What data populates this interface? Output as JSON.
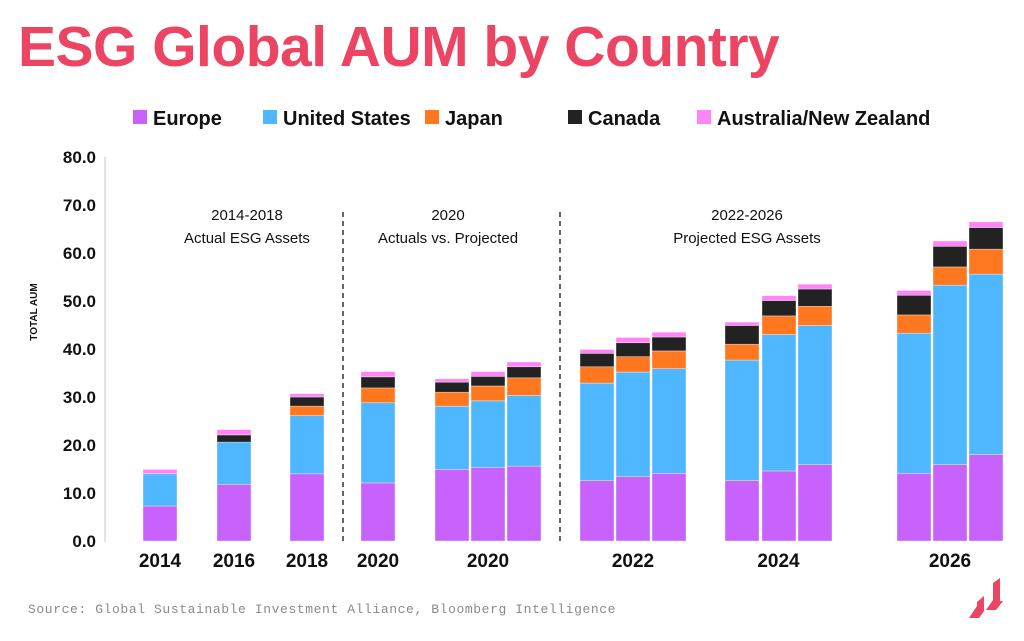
{
  "title": "ESG Global AUM by Country",
  "source": "Source: Global Sustainable Investment Alliance, Bloomberg Intelligence",
  "chart_data": {
    "type": "bar",
    "stacked": true,
    "ylabel": "TOTAL AUM",
    "ylim": [
      0,
      80
    ],
    "yticks": [
      "0.0",
      "10.0",
      "20.0",
      "30.0",
      "40.0",
      "50.0",
      "60.0",
      "70.0",
      "80.0"
    ],
    "grid": false,
    "legend_position": "top",
    "series": [
      {
        "name": "Europe",
        "color": "#c862fc"
      },
      {
        "name": "United States",
        "color": "#4fb7ff"
      },
      {
        "name": "Japan",
        "color": "#ff781f"
      },
      {
        "name": "Canada",
        "color": "#222222"
      },
      {
        "name": "Australia/New Zealand",
        "color": "#ff84f7"
      }
    ],
    "groups": [
      {
        "label": "2014",
        "bars": [
          [
            7.3,
            6.7,
            0,
            0,
            0.9
          ]
        ]
      },
      {
        "label": "2016",
        "bars": [
          [
            11.8,
            8.8,
            0,
            1.5,
            1.1
          ]
        ]
      },
      {
        "label": "2018",
        "bars": [
          [
            14.0,
            12.1,
            2.0,
            1.9,
            0.7
          ]
        ]
      },
      {
        "label": "2020",
        "bars": [
          [
            12.1,
            16.7,
            3.1,
            2.3,
            1.1
          ]
        ]
      },
      {
        "label": "2020",
        "bars": [
          [
            14.9,
            13.2,
            2.9,
            2.1,
            0.7
          ],
          [
            15.3,
            13.9,
            3.1,
            2.0,
            1.0
          ],
          [
            15.6,
            14.7,
            3.7,
            2.3,
            1.0
          ]
        ]
      },
      {
        "label": "2022",
        "bars": [
          [
            12.6,
            20.3,
            3.4,
            2.8,
            0.8
          ],
          [
            13.4,
            21.8,
            3.2,
            2.9,
            1.1
          ],
          [
            14.1,
            21.8,
            3.7,
            2.9,
            1.0
          ]
        ]
      },
      {
        "label": "2024",
        "bars": [
          [
            12.6,
            25.1,
            3.3,
            3.9,
            0.7
          ],
          [
            14.6,
            28.4,
            3.9,
            3.2,
            1.0
          ],
          [
            15.9,
            29.0,
            4.0,
            3.6,
            1.0
          ]
        ]
      },
      {
        "label": "2026",
        "bars": [
          [
            14.1,
            29.2,
            3.8,
            4.1,
            1.0
          ],
          [
            15.9,
            37.4,
            3.8,
            4.3,
            1.1
          ],
          [
            18.0,
            37.6,
            5.2,
            4.5,
            1.2
          ]
        ]
      }
    ],
    "annotations": [
      {
        "line1": "2014-2018",
        "line2": "Actual ESG Assets"
      },
      {
        "line1": "2020",
        "line2": "Actuals vs. Projected"
      },
      {
        "line1": "2022-2026",
        "line2": "Projected ESG Assets"
      }
    ]
  },
  "colors": {
    "title": "#ec4463",
    "logo": "#ec4463"
  }
}
